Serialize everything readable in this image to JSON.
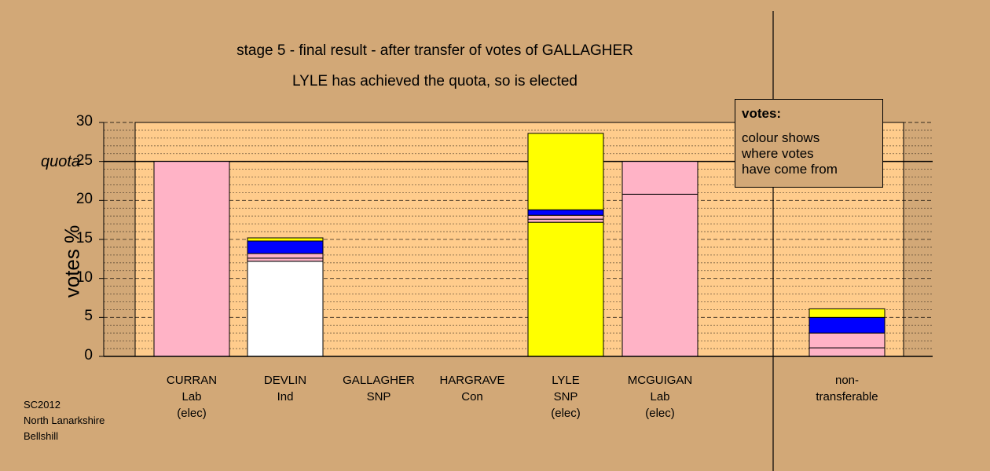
{
  "title_line1": "stage 5 - final result - after transfer of votes of GALLAGHER",
  "title_line2": "LYLE has achieved the quota, so is elected",
  "quota_label": "quota",
  "legend": {
    "title": "votes:",
    "body": "colour shows\nwhere votes\nhave come from"
  },
  "footer": [
    "SC2012",
    "North Lanarkshire",
    "Bellshill"
  ],
  "colors": {
    "background": "#d2a877",
    "plot_area": "#ffcc8c",
    "pink": "#ffb3c6",
    "white": "#ffffff",
    "blue": "#0000ff",
    "yellow": "#ffff00"
  },
  "chart_data": {
    "type": "bar",
    "stacked": true,
    "ylabel": "votes %",
    "ylim": [
      0,
      30
    ],
    "yticks": [
      0,
      5,
      10,
      15,
      20,
      25,
      30
    ],
    "quota": 25,
    "grid": true,
    "categories": [
      [
        "CURRAN",
        "Lab",
        "(elec)"
      ],
      [
        "DEVLIN",
        "Ind"
      ],
      [
        "GALLAGHER",
        "SNP"
      ],
      [
        "HARGRAVE",
        "Con"
      ],
      [
        "LYLE",
        "SNP",
        "(elec)"
      ],
      [
        "MCGUIGAN",
        "Lab",
        "(elec)"
      ],
      [
        "non-",
        "transferable"
      ]
    ],
    "stacks": [
      [
        {
          "color": "pink",
          "value": 25.0
        }
      ],
      [
        {
          "color": "white",
          "value": 12.2
        },
        {
          "color": "pink",
          "value": 0.4
        },
        {
          "color": "pink",
          "value": 0.6
        },
        {
          "color": "blue",
          "value": 1.6
        },
        {
          "color": "yellow",
          "value": 0.4
        }
      ],
      [],
      [],
      [
        {
          "color": "yellow",
          "value": 17.2
        },
        {
          "color": "pink",
          "value": 0.4
        },
        {
          "color": "pink",
          "value": 0.5
        },
        {
          "color": "blue",
          "value": 0.7
        },
        {
          "color": "yellow",
          "value": 9.8
        }
      ],
      [
        {
          "color": "pink",
          "value": 20.8
        },
        {
          "color": "pink",
          "value": 4.2
        }
      ],
      [
        {
          "color": "pink",
          "value": 1.1
        },
        {
          "color": "pink",
          "value": 1.9
        },
        {
          "color": "blue",
          "value": 2.0
        },
        {
          "color": "yellow",
          "value": 1.1
        }
      ]
    ]
  }
}
